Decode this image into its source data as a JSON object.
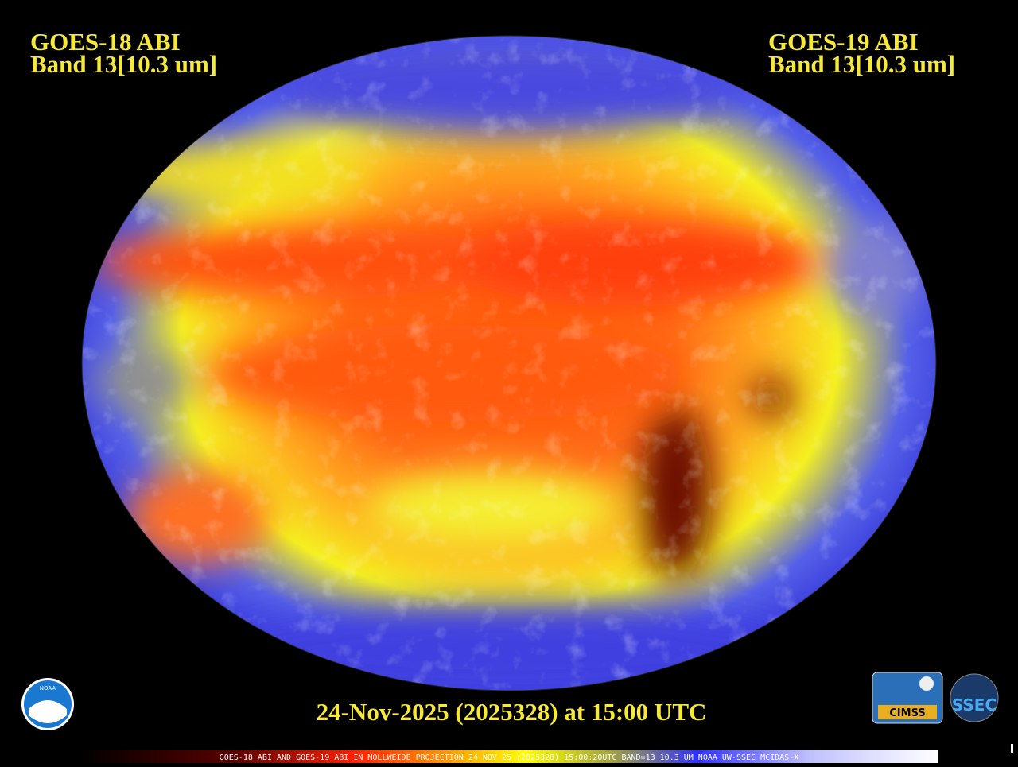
{
  "header": {
    "left": {
      "satellite": "GOES-18 ABI",
      "band": "Band 13[10.3 um]"
    },
    "right": {
      "satellite": "GOES-19 ABI",
      "band": "Band 13[10.3 um]"
    }
  },
  "timestamp": "24-Nov-2025 (2025328) at 15:00 UTC",
  "footer": "GOES-18 ABI AND GOES-19 ABI IN MOLLWEIDE PROJECTION 24 NOV 25 (2025328) 15:00:20UTC BAND=13 10.3 UM NOAA UW-SSEC MCIDAS-X",
  "logos": {
    "noaa": "NOAA",
    "cimss": "CIMSS",
    "ssec": "SSEC"
  }
}
